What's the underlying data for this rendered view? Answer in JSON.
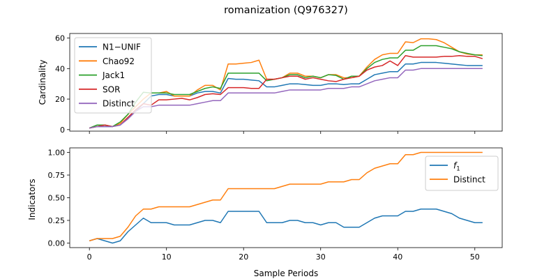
{
  "figure": {
    "title": "romanization (Q976327)"
  },
  "colors": {
    "N1-UNIF": "#1f77b4",
    "Chao92": "#ff7f0e",
    "Jack1": "#2ca02c",
    "SOR": "#d62728",
    "Distinct": "#9467bd"
  },
  "chart_data": [
    {
      "type": "line",
      "title": "",
      "xlabel": "",
      "ylabel": "Cardinality",
      "xlim": [
        -2.55,
        53.55
      ],
      "ylim": [
        -1,
        63
      ],
      "xticks": [
        0,
        10,
        20,
        30,
        40,
        50
      ],
      "yticks": [
        0,
        20,
        40,
        60
      ],
      "x_tick_labels_shown": false,
      "legend": "upper left",
      "x": [
        0,
        1,
        2,
        3,
        4,
        5,
        6,
        7,
        8,
        9,
        10,
        11,
        12,
        13,
        14,
        15,
        16,
        17,
        18,
        19,
        20,
        21,
        22,
        23,
        24,
        25,
        26,
        27,
        28,
        29,
        30,
        31,
        32,
        33,
        34,
        35,
        36,
        37,
        38,
        39,
        40,
        41,
        42,
        43,
        44,
        45,
        46,
        47,
        48,
        49,
        50,
        51
      ],
      "series": [
        {
          "name": "N1−UNIF",
          "color": "#1f77b4",
          "values": [
            1,
            2,
            2,
            2,
            3,
            8,
            12,
            17,
            22,
            23,
            23,
            22,
            22,
            22,
            24,
            25,
            25,
            24,
            33.5,
            33,
            33,
            32.5,
            32,
            28,
            28,
            29,
            30,
            30,
            29.5,
            29,
            29,
            30,
            30,
            29.5,
            30,
            30,
            33,
            36,
            37,
            38,
            38,
            43,
            43,
            44,
            44,
            44,
            43.5,
            43,
            42.5,
            42,
            42,
            42
          ]
        },
        {
          "name": "Chao92",
          "color": "#ff7f0e",
          "values": [
            1,
            2,
            3,
            2,
            4,
            10,
            15,
            20,
            24,
            24,
            25,
            22,
            22,
            22,
            26,
            29,
            29,
            26,
            43,
            43,
            43.5,
            44,
            45.5,
            33,
            33,
            34,
            37,
            37,
            35,
            35,
            34,
            36,
            36,
            34,
            34,
            35,
            41,
            46,
            49,
            50,
            50,
            57.5,
            57,
            59.5,
            59.5,
            59,
            57,
            54,
            51,
            49.5,
            49,
            49
          ]
        },
        {
          "name": "Jack1",
          "color": "#2ca02c",
          "values": [
            1,
            3,
            3,
            2,
            5,
            10,
            18,
            24.5,
            24,
            24,
            24,
            23,
            23,
            23,
            25,
            27,
            28,
            27,
            37,
            37,
            37,
            37,
            37,
            32,
            33,
            34,
            36,
            36,
            34,
            35,
            34,
            36,
            35.5,
            33,
            35,
            35,
            40,
            44,
            46,
            47,
            47,
            52,
            52,
            55,
            55,
            55,
            54,
            53,
            51,
            50,
            49,
            48.5
          ]
        },
        {
          "name": "SOR",
          "color": "#d62728",
          "values": [
            1,
            2,
            3,
            2,
            3,
            8,
            13,
            17,
            16,
            19.5,
            19.5,
            20,
            20.5,
            19.5,
            21,
            23,
            23.5,
            23,
            27.5,
            27.5,
            27.5,
            27,
            27,
            33,
            33,
            34,
            35,
            35,
            33,
            34,
            33,
            32,
            31.5,
            33,
            34,
            35,
            39,
            41,
            42,
            45,
            42,
            48.5,
            47.5,
            47.5,
            47.5,
            47.5,
            48,
            48,
            48.5,
            48,
            48,
            46.5
          ]
        },
        {
          "name": "Distinct",
          "color": "#9467bd",
          "values": [
            1,
            2,
            2,
            2,
            3,
            7,
            12,
            15,
            15,
            16,
            16,
            16,
            16,
            16,
            17,
            18,
            19,
            19,
            24,
            24,
            24,
            24,
            24,
            24,
            24,
            25,
            26,
            26,
            26,
            26,
            26,
            27,
            27,
            27,
            28,
            28,
            30,
            32,
            33,
            34,
            34,
            39,
            39,
            40,
            40,
            40,
            40,
            40,
            40,
            40,
            40,
            40
          ]
        }
      ]
    },
    {
      "type": "line",
      "title": "",
      "xlabel": "Sample Periods",
      "ylabel": "Indicators",
      "xlim": [
        -2.55,
        53.55
      ],
      "ylim": [
        -0.05,
        1.05
      ],
      "xticks": [
        0,
        10,
        20,
        30,
        40,
        50
      ],
      "yticks": [
        0.0,
        0.25,
        0.5,
        0.75,
        1.0
      ],
      "ytick_labels": [
        "0.00",
        "0.25",
        "0.50",
        "0.75",
        "1.00"
      ],
      "legend": "upper right",
      "x": [
        0,
        1,
        2,
        3,
        4,
        5,
        6,
        7,
        8,
        9,
        10,
        11,
        12,
        13,
        14,
        15,
        16,
        17,
        18,
        19,
        20,
        21,
        22,
        23,
        24,
        25,
        26,
        27,
        28,
        29,
        30,
        31,
        32,
        33,
        34,
        35,
        36,
        37,
        38,
        39,
        40,
        41,
        42,
        43,
        44,
        45,
        46,
        47,
        48,
        49,
        50,
        51
      ],
      "series": [
        {
          "name": "f1",
          "color": "#1f77b4",
          "values": [
            0.025,
            0.05,
            0.025,
            0.0,
            0.025,
            0.125,
            0.2,
            0.275,
            0.225,
            0.225,
            0.225,
            0.2,
            0.2,
            0.2,
            0.225,
            0.25,
            0.25,
            0.225,
            0.35,
            0.35,
            0.35,
            0.35,
            0.35,
            0.225,
            0.225,
            0.225,
            0.25,
            0.25,
            0.225,
            0.225,
            0.2,
            0.225,
            0.225,
            0.175,
            0.175,
            0.175,
            0.225,
            0.275,
            0.3,
            0.3,
            0.3,
            0.35,
            0.35,
            0.375,
            0.375,
            0.375,
            0.35,
            0.325,
            0.275,
            0.25,
            0.225,
            0.225
          ]
        },
        {
          "name": "Distinct",
          "color": "#ff7f0e",
          "values": [
            0.025,
            0.05,
            0.05,
            0.05,
            0.075,
            0.175,
            0.3,
            0.375,
            0.375,
            0.4,
            0.4,
            0.4,
            0.4,
            0.4,
            0.425,
            0.45,
            0.475,
            0.475,
            0.6,
            0.6,
            0.6,
            0.6,
            0.6,
            0.6,
            0.6,
            0.625,
            0.65,
            0.65,
            0.65,
            0.65,
            0.65,
            0.675,
            0.675,
            0.675,
            0.7,
            0.7,
            0.775,
            0.825,
            0.85,
            0.875,
            0.875,
            0.975,
            0.975,
            1.0,
            1.0,
            1.0,
            1.0,
            1.0,
            1.0,
            1.0,
            1.0,
            1.0
          ]
        }
      ]
    }
  ]
}
